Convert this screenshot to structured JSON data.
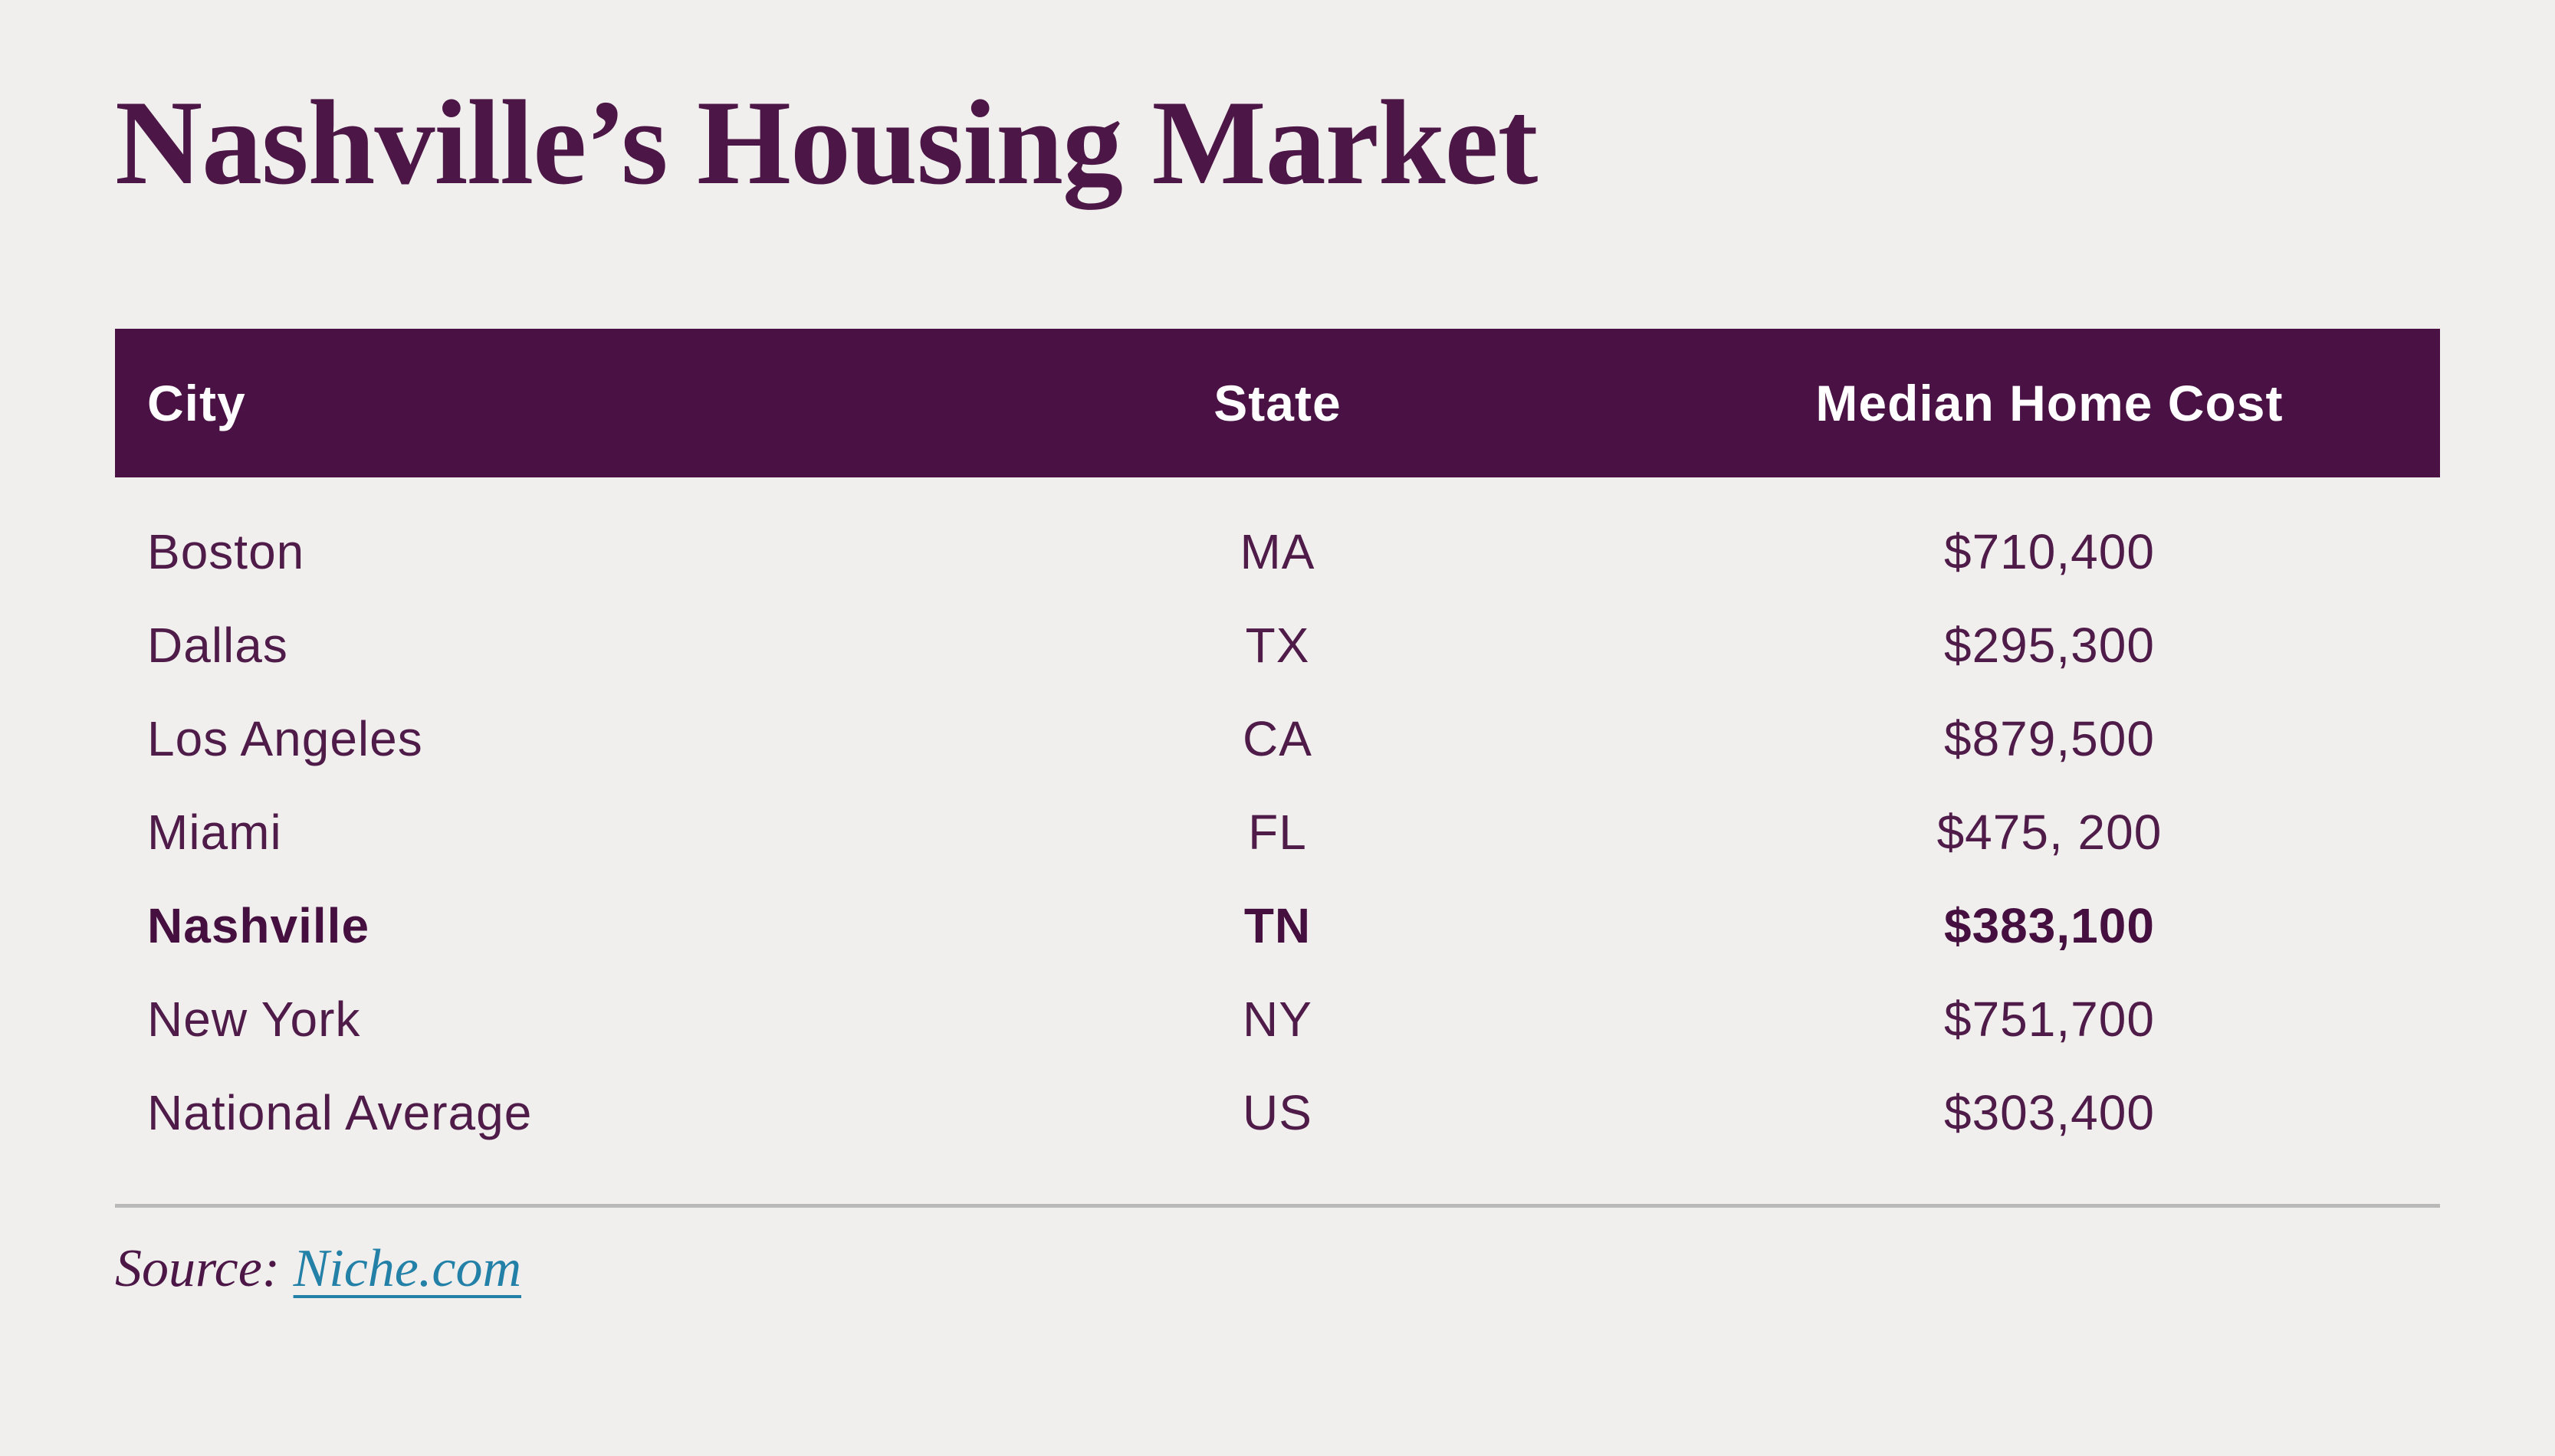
{
  "title": "Nashville’s Housing Market",
  "colors": {
    "background": "#f0efee",
    "header_bar": "#4a1145",
    "title_text": "#4c1746",
    "row_text": "#4f1b49",
    "link": "#2381a8",
    "divider": "#b9b9b9"
  },
  "table": {
    "headers": [
      "City",
      "State",
      "Median Home Cost"
    ],
    "rows": [
      {
        "city": "Boston",
        "state": "MA",
        "cost": "$710,400"
      },
      {
        "city": "Dallas",
        "state": "TX",
        "cost": "$295,300"
      },
      {
        "city": "Los Angeles",
        "state": "CA",
        "cost": "$879,500"
      },
      {
        "city": "Miami",
        "state": "FL",
        "cost": "$475, 200"
      },
      {
        "city": "Nashville",
        "state": "TN",
        "cost": "$383,100",
        "highlight": true
      },
      {
        "city": "New York",
        "state": "NY",
        "cost": "$751,700"
      },
      {
        "city": "National Average",
        "state": "US",
        "cost": "$303,400"
      }
    ]
  },
  "source": {
    "label": "Source:",
    "link_label": "Niche.com"
  },
  "chart_data": {
    "type": "table",
    "title": "Nashville’s Housing Market",
    "columns": [
      "City",
      "State",
      "Median Home Cost"
    ],
    "categories": [
      "Boston",
      "Dallas",
      "Los Angeles",
      "Miami",
      "Nashville",
      "New York",
      "National Average"
    ],
    "states": [
      "MA",
      "TX",
      "CA",
      "FL",
      "TN",
      "NY",
      "US"
    ],
    "values": [
      710400,
      295300,
      879500,
      475200,
      383100,
      751700,
      303400
    ],
    "value_labels": [
      "$710,400",
      "$295,300",
      "$879,500",
      "$475, 200",
      "$383,100",
      "$751,700",
      "$303,400"
    ],
    "highlighted_row": "Nashville",
    "source": "Niche.com"
  }
}
